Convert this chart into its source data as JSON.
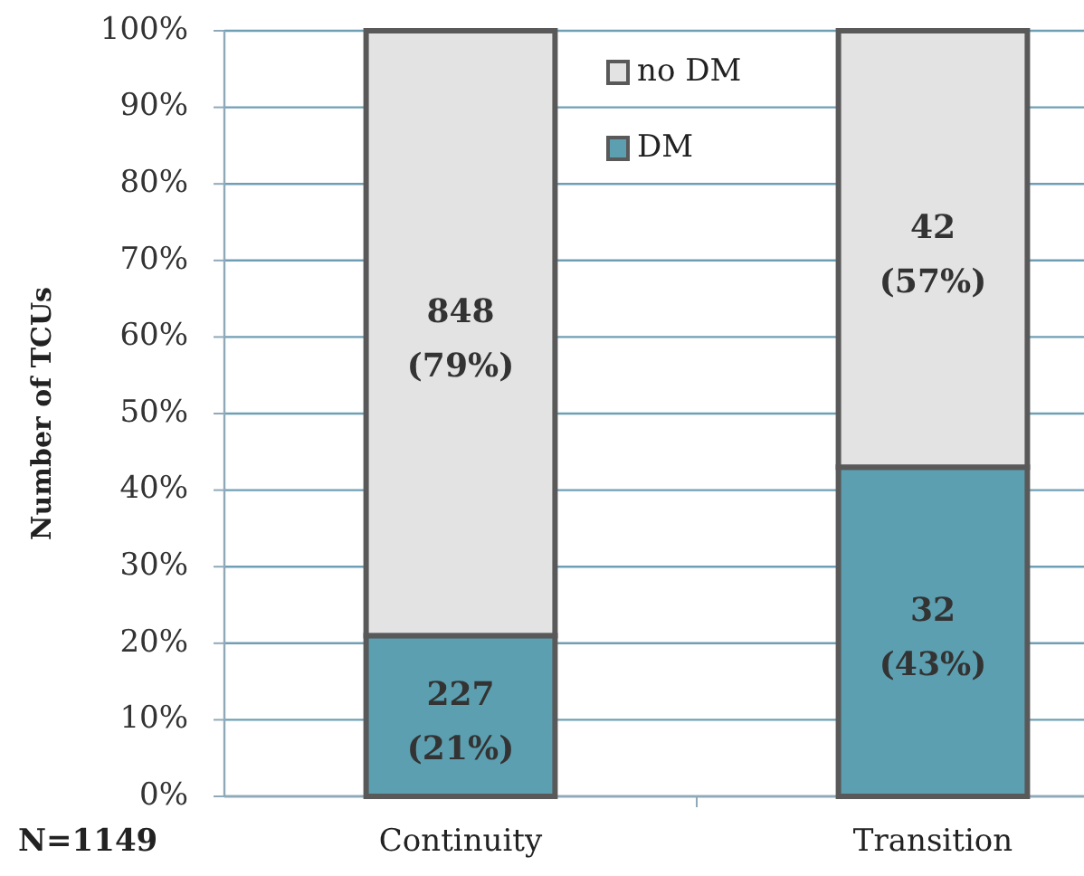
{
  "chart_data": {
    "type": "bar",
    "stacked": true,
    "ylabel": "Number of TCUs",
    "categories": [
      "Continuity",
      "Transition"
    ],
    "series": [
      {
        "name": "DM",
        "color": "#5c9fb0",
        "values": [
          21,
          43
        ],
        "value_labels": [
          "227 (21%)",
          "32 (43%)"
        ]
      },
      {
        "name": "no DM",
        "color": "#e3e3e3",
        "values": [
          79,
          57
        ],
        "value_labels": [
          "848 (79%)",
          "42 (57%)"
        ]
      }
    ],
    "ylim": [
      0,
      100
    ],
    "yticks": [
      {
        "value": 0,
        "label": "0%"
      },
      {
        "value": 10,
        "label": "10%"
      },
      {
        "value": 20,
        "label": "20%"
      },
      {
        "value": 30,
        "label": "30%"
      },
      {
        "value": 40,
        "label": "40%"
      },
      {
        "value": 50,
        "label": "50%"
      },
      {
        "value": 60,
        "label": "60%"
      },
      {
        "value": 70,
        "label": "70%"
      },
      {
        "value": 80,
        "label": "80%"
      },
      {
        "value": 90,
        "label": "90%"
      },
      {
        "value": 100,
        "label": "100%"
      }
    ],
    "grid": "y",
    "legend": "top",
    "annotations": [
      "N=1149"
    ]
  }
}
